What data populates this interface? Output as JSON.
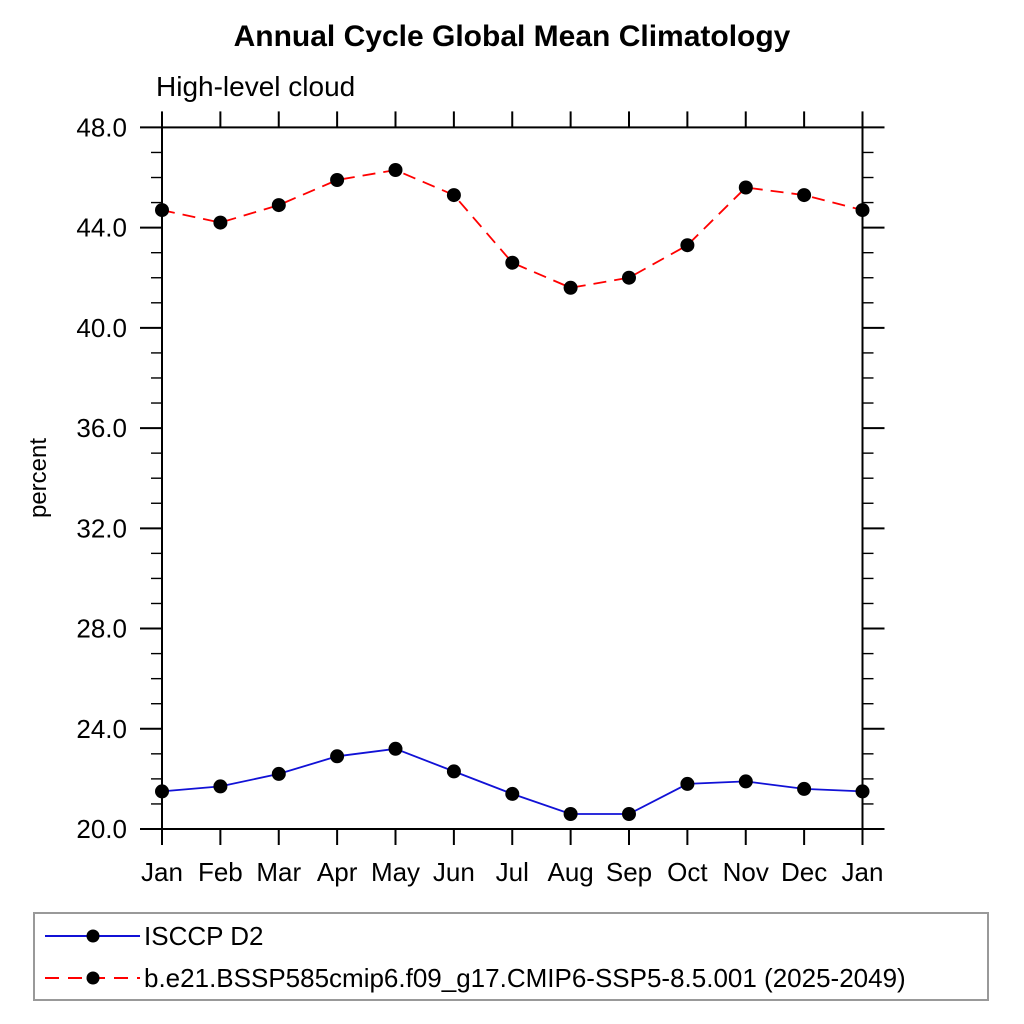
{
  "title": "Annual Cycle Global Mean Climatology",
  "subtitle": "High-level cloud",
  "chart_data": {
    "type": "line",
    "categories": [
      "Jan",
      "Feb",
      "Mar",
      "Apr",
      "May",
      "Jun",
      "Jul",
      "Aug",
      "Sep",
      "Oct",
      "Nov",
      "Dec",
      "Jan"
    ],
    "series": [
      {
        "name": "ISCCP D2",
        "color": "#1111d6",
        "line_style": "solid",
        "marker": "filled-circle",
        "marker_color": "#000000",
        "values": [
          21.5,
          21.7,
          22.2,
          22.9,
          23.2,
          22.3,
          21.4,
          20.6,
          20.6,
          21.8,
          21.9,
          21.6,
          21.5
        ]
      },
      {
        "name": "b.e21.BSSP585cmip6.f09_g17.CMIP6-SSP5-8.5.001 (2025-2049)",
        "color": "#ff0000",
        "line_style": "dashed",
        "marker": "filled-circle",
        "marker_color": "#000000",
        "values": [
          44.7,
          44.2,
          44.9,
          45.9,
          46.3,
          45.3,
          42.6,
          41.6,
          42.0,
          43.3,
          45.6,
          45.3,
          44.7
        ]
      }
    ],
    "xlabel": "",
    "ylabel": "percent",
    "ylim": [
      20.0,
      48.0
    ],
    "y_major_ticks": [
      20,
      24,
      28,
      32,
      36,
      40,
      44,
      48
    ],
    "y_tick_labels": [
      "20.0",
      "24.0",
      "28.0",
      "32.0",
      "36.0",
      "40.0",
      "44.0",
      "48.0"
    ],
    "y_minor_step": 1,
    "grid": false,
    "tick_direction": "out",
    "legend_position": "bottom"
  }
}
